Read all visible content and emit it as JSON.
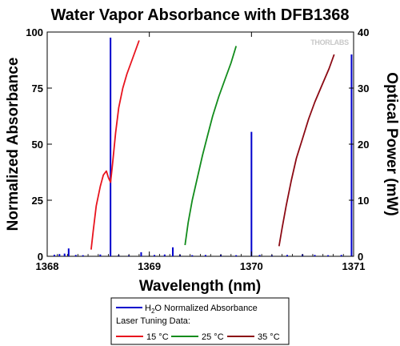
{
  "chart_data": {
    "type": "line",
    "title": "Water Vapor Absorbance with DFB1368",
    "xlabel": "Wavelength (nm)",
    "ylabel": "Normalized Absorbance",
    "y2label": "Optical Power (mW)",
    "xlim": [
      1368,
      1371
    ],
    "ylim": [
      0,
      100
    ],
    "y2lim": [
      0,
      40
    ],
    "x_ticks": [
      "1368",
      "1369",
      "1370",
      "1371"
    ],
    "y_ticks": [
      "0",
      "25",
      "50",
      "75",
      "100"
    ],
    "y2_ticks": [
      "0",
      "10",
      "20",
      "30",
      "40"
    ],
    "grid": false,
    "watermark": "THORLABS",
    "legend": {
      "placement": "bottom",
      "absorbance_label_prefix": "H",
      "absorbance_label_sub": "2",
      "absorbance_label_suffix": "O Normalized Absorbance",
      "tuning_header": "Laser Tuning Data:"
    },
    "absorbance_lines": {
      "color": "#0000cc",
      "lines": [
        {
          "x": 1368.07,
          "y": 0.7
        },
        {
          "x": 1368.12,
          "y": 1.0
        },
        {
          "x": 1368.17,
          "y": 1.2
        },
        {
          "x": 1368.21,
          "y": 3.5
        },
        {
          "x": 1368.28,
          "y": 0.6
        },
        {
          "x": 1368.35,
          "y": 0.5
        },
        {
          "x": 1368.52,
          "y": 0.8
        },
        {
          "x": 1368.62,
          "y": 97.5
        },
        {
          "x": 1368.7,
          "y": 0.6
        },
        {
          "x": 1368.8,
          "y": 0.5
        },
        {
          "x": 1368.92,
          "y": 1.8
        },
        {
          "x": 1369.05,
          "y": 0.6
        },
        {
          "x": 1369.15,
          "y": 0.8
        },
        {
          "x": 1369.23,
          "y": 4.0
        },
        {
          "x": 1369.3,
          "y": 0.7
        },
        {
          "x": 1369.42,
          "y": 0.5
        },
        {
          "x": 1369.55,
          "y": 0.6
        },
        {
          "x": 1369.7,
          "y": 0.7
        },
        {
          "x": 1369.85,
          "y": 0.5
        },
        {
          "x": 1370.0,
          "y": 55.5
        },
        {
          "x": 1370.08,
          "y": 0.6
        },
        {
          "x": 1370.2,
          "y": 0.5
        },
        {
          "x": 1370.35,
          "y": 0.6
        },
        {
          "x": 1370.5,
          "y": 0.9
        },
        {
          "x": 1370.62,
          "y": 0.6
        },
        {
          "x": 1370.75,
          "y": 0.5
        },
        {
          "x": 1370.88,
          "y": 0.6
        },
        {
          "x": 1370.98,
          "y": 90.0
        }
      ]
    },
    "series": [
      {
        "name": "15 °C",
        "color": "#e8141e",
        "x": [
          1368.43,
          1368.45,
          1368.48,
          1368.52,
          1368.55,
          1368.58,
          1368.6,
          1368.62,
          1368.64,
          1368.67,
          1368.7,
          1368.74,
          1368.78,
          1368.83,
          1368.87,
          1368.9
        ],
        "y": [
          1.2,
          4.5,
          9.0,
          12.5,
          14.5,
          15.2,
          14.0,
          13.2,
          16.5,
          22.0,
          26.5,
          30.0,
          32.5,
          35.0,
          37.0,
          38.5
        ]
      },
      {
        "name": "25 °C",
        "color": "#128c1c",
        "x": [
          1369.35,
          1369.38,
          1369.42,
          1369.47,
          1369.52,
          1369.57,
          1369.62,
          1369.68,
          1369.74,
          1369.8,
          1369.85
        ],
        "y": [
          2.0,
          6.0,
          10.0,
          14.0,
          18.0,
          21.5,
          25.0,
          28.5,
          31.5,
          34.5,
          37.5
        ]
      },
      {
        "name": "35 °C",
        "color": "#8c0a14",
        "x": [
          1370.27,
          1370.3,
          1370.34,
          1370.39,
          1370.44,
          1370.5,
          1370.56,
          1370.62,
          1370.69,
          1370.76,
          1370.81
        ],
        "y": [
          1.8,
          5.0,
          9.0,
          13.5,
          17.5,
          21.0,
          24.5,
          27.5,
          30.5,
          33.5,
          36.0
        ]
      }
    ]
  }
}
